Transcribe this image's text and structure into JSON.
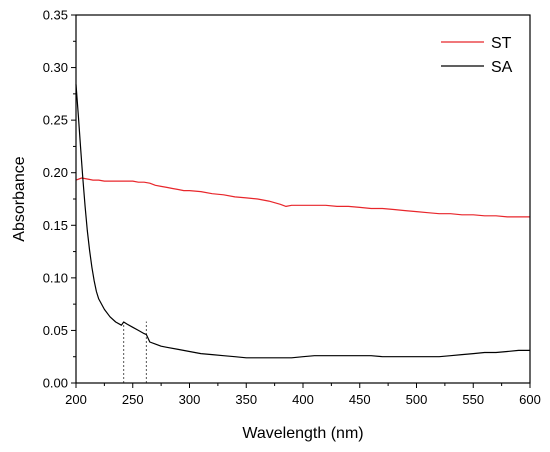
{
  "chart_data": {
    "type": "line",
    "title": "",
    "xlabel": "Wavelength (nm)",
    "ylabel": "Absorbance",
    "xlim": [
      200,
      600
    ],
    "ylim": [
      0.0,
      0.35
    ],
    "x_ticks": [
      "200",
      "250",
      "300",
      "350",
      "400",
      "450",
      "500",
      "550",
      "600"
    ],
    "y_ticks": [
      "0.00",
      "0.05",
      "0.10",
      "0.15",
      "0.20",
      "0.25",
      "0.30",
      "0.35"
    ],
    "grid": false,
    "legend_position": "top-right",
    "series": [
      {
        "name": "ST",
        "color": "#e8262b",
        "x": [
          200,
          205,
          210,
          215,
          220,
          225,
          230,
          235,
          240,
          245,
          250,
          255,
          260,
          265,
          270,
          275,
          280,
          285,
          290,
          295,
          300,
          310,
          320,
          330,
          340,
          350,
          360,
          370,
          380,
          385,
          390,
          400,
          410,
          420,
          430,
          440,
          450,
          460,
          470,
          480,
          490,
          500,
          510,
          520,
          530,
          540,
          550,
          560,
          570,
          580,
          590,
          600
        ],
        "y": [
          0.193,
          0.195,
          0.194,
          0.193,
          0.193,
          0.192,
          0.192,
          0.192,
          0.192,
          0.192,
          0.192,
          0.191,
          0.191,
          0.19,
          0.188,
          0.187,
          0.186,
          0.185,
          0.184,
          0.183,
          0.183,
          0.182,
          0.18,
          0.179,
          0.177,
          0.176,
          0.175,
          0.173,
          0.17,
          0.168,
          0.169,
          0.169,
          0.169,
          0.169,
          0.168,
          0.168,
          0.167,
          0.166,
          0.166,
          0.165,
          0.164,
          0.163,
          0.162,
          0.161,
          0.161,
          0.16,
          0.16,
          0.159,
          0.159,
          0.158,
          0.158,
          0.158
        ]
      },
      {
        "name": "SA",
        "color": "#000000",
        "x": [
          200,
          202,
          204,
          206,
          208,
          210,
          212,
          214,
          216,
          218,
          220,
          225,
          230,
          235,
          240,
          242,
          245,
          250,
          255,
          260,
          262,
          265,
          270,
          275,
          280,
          290,
          300,
          310,
          320,
          330,
          340,
          350,
          360,
          370,
          380,
          390,
          400,
          410,
          420,
          430,
          440,
          450,
          460,
          470,
          480,
          490,
          500,
          510,
          520,
          530,
          540,
          550,
          560,
          570,
          580,
          590,
          600
        ],
        "y": [
          0.284,
          0.255,
          0.225,
          0.195,
          0.168,
          0.145,
          0.126,
          0.11,
          0.097,
          0.087,
          0.08,
          0.07,
          0.063,
          0.058,
          0.055,
          0.058,
          0.056,
          0.053,
          0.05,
          0.047,
          0.046,
          0.039,
          0.037,
          0.035,
          0.034,
          0.032,
          0.03,
          0.028,
          0.027,
          0.026,
          0.025,
          0.024,
          0.024,
          0.024,
          0.024,
          0.024,
          0.025,
          0.026,
          0.026,
          0.026,
          0.026,
          0.026,
          0.026,
          0.025,
          0.025,
          0.025,
          0.025,
          0.025,
          0.025,
          0.026,
          0.027,
          0.028,
          0.029,
          0.029,
          0.03,
          0.031,
          0.031
        ]
      }
    ],
    "annotations": [
      {
        "type": "vline",
        "x": 242,
        "style": "dotted"
      },
      {
        "type": "vline",
        "x": 262,
        "style": "dotted"
      }
    ]
  }
}
